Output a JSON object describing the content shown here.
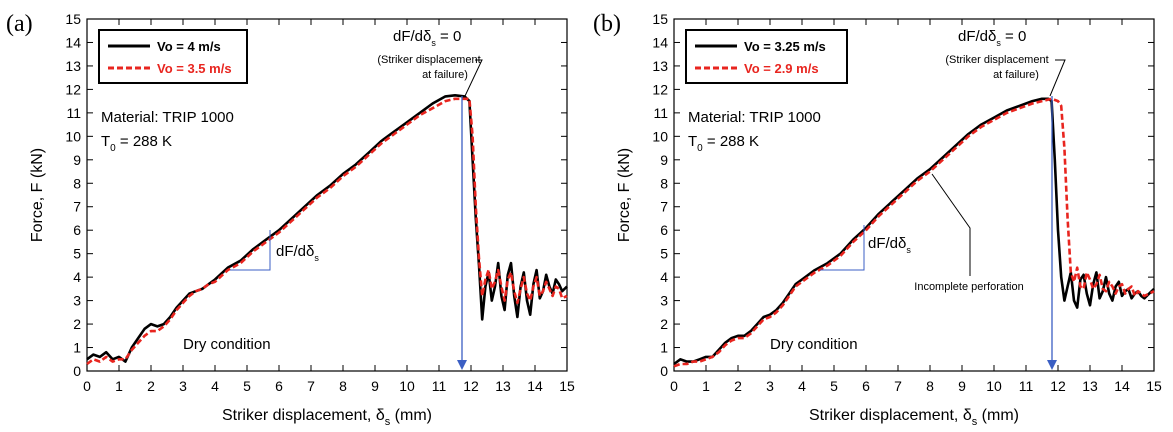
{
  "chart_data": [
    {
      "panel_label": "(a)",
      "type": "line",
      "xlabel": "Striker displacement, δ",
      "xlabel_sub": "s",
      "xlabel_unit": " (mm)",
      "ylabel": "Force, F (kN)",
      "xlim": [
        0,
        15
      ],
      "ylim": [
        0,
        15
      ],
      "xticks": [
        "0",
        "1",
        "2",
        "3",
        "4",
        "5",
        "6",
        "7",
        "8",
        "9",
        "10",
        "11",
        "12",
        "13",
        "14",
        "15"
      ],
      "yticks": [
        "0",
        "1",
        "2",
        "3",
        "4",
        "5",
        "6",
        "7",
        "8",
        "9",
        "10",
        "11",
        "12",
        "13",
        "14",
        "15"
      ],
      "grid": false,
      "legend_position": "top-left",
      "series": [
        {
          "name": "Vo = 4 m/s",
          "color": "#000000",
          "dash": "solid",
          "x": [
            0,
            0.2,
            0.4,
            0.6,
            0.8,
            1.0,
            1.2,
            1.4,
            1.6,
            1.8,
            2.0,
            2.2,
            2.4,
            2.6,
            2.8,
            3.0,
            3.2,
            3.4,
            3.6,
            3.8,
            4.0,
            4.4,
            4.8,
            5.2,
            5.6,
            6.0,
            6.4,
            6.8,
            7.2,
            7.6,
            8.0,
            8.4,
            8.8,
            9.2,
            9.6,
            10.0,
            10.4,
            10.8,
            11.2,
            11.5,
            11.8,
            11.95,
            12.05,
            12.15,
            12.25,
            12.35,
            12.45,
            12.55,
            12.65,
            12.75,
            12.85,
            12.95,
            13.05,
            13.15,
            13.25,
            13.35,
            13.45,
            13.55,
            13.65,
            13.75,
            13.85,
            13.95,
            14.05,
            14.15,
            14.25,
            14.35,
            14.45,
            14.55,
            14.65,
            14.75,
            14.85,
            15.0
          ],
          "y": [
            0.5,
            0.7,
            0.6,
            0.8,
            0.5,
            0.6,
            0.4,
            1.0,
            1.4,
            1.8,
            2.0,
            1.9,
            2.0,
            2.3,
            2.7,
            3.0,
            3.3,
            3.4,
            3.5,
            3.7,
            3.9,
            4.4,
            4.7,
            5.2,
            5.6,
            6.0,
            6.5,
            7.0,
            7.5,
            7.9,
            8.4,
            8.8,
            9.3,
            9.8,
            10.2,
            10.6,
            11.0,
            11.4,
            11.7,
            11.75,
            11.7,
            11.5,
            9.0,
            6.5,
            4.5,
            2.2,
            3.6,
            4.2,
            3.0,
            3.6,
            4.6,
            3.2,
            2.6,
            4.1,
            4.6,
            3.2,
            2.3,
            3.6,
            4.2,
            3.0,
            2.4,
            3.7,
            4.3,
            3.1,
            3.4,
            4.1,
            3.6,
            3.3,
            3.9,
            3.7,
            3.4,
            3.6
          ]
        },
        {
          "name": "Vo = 3.5 m/s",
          "color": "#e8251f",
          "dash": "dashed",
          "x": [
            0,
            0.2,
            0.4,
            0.6,
            0.8,
            1.0,
            1.2,
            1.4,
            1.6,
            1.8,
            2.0,
            2.2,
            2.4,
            2.6,
            2.8,
            3.0,
            3.2,
            3.4,
            3.6,
            3.8,
            4.0,
            4.4,
            4.8,
            5.2,
            5.6,
            6.0,
            6.4,
            6.8,
            7.2,
            7.6,
            8.0,
            8.4,
            8.8,
            9.2,
            9.6,
            10.0,
            10.4,
            10.8,
            11.2,
            11.5,
            11.8,
            11.95,
            12.05,
            12.15,
            12.25,
            12.35,
            12.45,
            12.55,
            12.65,
            12.75,
            12.85,
            12.95,
            13.05,
            13.15,
            13.25,
            13.35,
            13.45,
            13.55,
            13.65,
            13.75,
            13.85,
            13.95,
            14.05,
            14.15,
            14.25,
            14.35,
            14.45,
            14.55,
            14.65,
            14.75,
            14.85,
            15.0
          ],
          "y": [
            0.3,
            0.5,
            0.4,
            0.6,
            0.4,
            0.5,
            0.5,
            0.9,
            1.2,
            1.5,
            1.7,
            1.7,
            1.9,
            2.2,
            2.6,
            2.9,
            3.2,
            3.4,
            3.5,
            3.7,
            3.8,
            4.3,
            4.6,
            5.1,
            5.5,
            5.9,
            6.4,
            6.9,
            7.4,
            7.8,
            8.3,
            8.7,
            9.2,
            9.7,
            10.1,
            10.5,
            10.9,
            11.2,
            11.5,
            11.6,
            11.6,
            11.6,
            10.0,
            7.0,
            4.8,
            3.2,
            3.9,
            4.3,
            3.5,
            3.8,
            4.3,
            3.6,
            3.0,
            3.9,
            4.2,
            3.4,
            2.9,
            3.5,
            4.0,
            3.3,
            3.0,
            3.6,
            4.0,
            3.2,
            3.4,
            3.8,
            3.5,
            3.2,
            3.6,
            3.5,
            3.1,
            3.2
          ]
        }
      ],
      "annotations": {
        "material": "Material: TRIP 1000",
        "temp_prefix": "T",
        "temp_sub": "0",
        "temp_suffix": " = 288 K",
        "condition": "Dry condition",
        "slope_main": "dF/dδ",
        "slope_sub": "s",
        "failure_main": "dF/dδ",
        "failure_sub": "s",
        "failure_eq": " = 0",
        "failure_note_1": "(Striker displacement",
        "failure_note_2": "at failure)"
      },
      "arrow_color": "#3b5fc4"
    },
    {
      "panel_label": "(b)",
      "type": "line",
      "xlabel": "Striker displacement, δ",
      "xlabel_sub": "s",
      "xlabel_unit": " (mm)",
      "ylabel": "Force, F (kN)",
      "xlim": [
        0,
        15
      ],
      "ylim": [
        0,
        15
      ],
      "xticks": [
        "0",
        "1",
        "2",
        "3",
        "4",
        "5",
        "6",
        "7",
        "8",
        "9",
        "10",
        "11",
        "12",
        "13",
        "14",
        "15"
      ],
      "yticks": [
        "0",
        "1",
        "2",
        "3",
        "4",
        "5",
        "6",
        "7",
        "8",
        "9",
        "10",
        "11",
        "12",
        "13",
        "14",
        "15"
      ],
      "grid": false,
      "legend_position": "top-left",
      "series": [
        {
          "name": "Vo = 3.25 m/s",
          "color": "#000000",
          "dash": "solid",
          "x": [
            0,
            0.2,
            0.4,
            0.6,
            0.8,
            1.0,
            1.2,
            1.4,
            1.6,
            1.8,
            2.0,
            2.2,
            2.4,
            2.6,
            2.8,
            3.0,
            3.2,
            3.4,
            3.6,
            3.8,
            4.0,
            4.4,
            4.8,
            5.2,
            5.6,
            6.0,
            6.4,
            6.8,
            7.2,
            7.6,
            8.0,
            8.4,
            8.8,
            9.2,
            9.6,
            10.0,
            10.4,
            10.8,
            11.2,
            11.5,
            11.7,
            11.8,
            11.9,
            12.0,
            12.1,
            12.2,
            12.3,
            12.4,
            12.5,
            12.6,
            12.7,
            12.8,
            12.9,
            13.0,
            13.1,
            13.2,
            13.3,
            13.4,
            13.5,
            13.6,
            13.7,
            13.8,
            13.9,
            14.0,
            14.1,
            14.2,
            14.3,
            14.4,
            14.5,
            14.6,
            14.7,
            14.85,
            15.0
          ],
          "y": [
            0.3,
            0.5,
            0.4,
            0.4,
            0.5,
            0.6,
            0.6,
            0.9,
            1.2,
            1.4,
            1.5,
            1.5,
            1.7,
            2.0,
            2.3,
            2.4,
            2.6,
            2.9,
            3.3,
            3.7,
            3.9,
            4.3,
            4.6,
            5.0,
            5.6,
            6.1,
            6.7,
            7.2,
            7.7,
            8.2,
            8.6,
            9.1,
            9.6,
            10.1,
            10.5,
            10.8,
            11.1,
            11.3,
            11.5,
            11.6,
            11.6,
            11.5,
            9.0,
            6.0,
            4.0,
            3.0,
            3.6,
            4.2,
            3.0,
            2.7,
            3.9,
            4.1,
            3.3,
            2.8,
            3.7,
            4.2,
            3.1,
            3.4,
            4.0,
            3.3,
            3.0,
            3.6,
            3.8,
            3.2,
            3.4,
            3.5,
            3.1,
            3.3,
            3.4,
            3.2,
            3.1,
            3.3,
            3.5
          ]
        },
        {
          "name": "Vo = 2.9 m/s",
          "color": "#e8251f",
          "dash": "dashed",
          "x": [
            0,
            0.2,
            0.4,
            0.6,
            0.8,
            1.0,
            1.2,
            1.4,
            1.6,
            1.8,
            2.0,
            2.2,
            2.4,
            2.6,
            2.8,
            3.0,
            3.2,
            3.4,
            3.6,
            3.8,
            4.0,
            4.4,
            4.8,
            5.2,
            5.6,
            6.0,
            6.4,
            6.8,
            7.2,
            7.6,
            8.0,
            8.4,
            8.8,
            9.2,
            9.6,
            10.0,
            10.4,
            10.8,
            11.2,
            11.5,
            11.8,
            12.0,
            12.1,
            12.2,
            12.3,
            12.4,
            12.5,
            12.6,
            12.7,
            12.8,
            12.9,
            13.0,
            13.1,
            13.2,
            13.3,
            13.4,
            13.5,
            13.6,
            13.7,
            13.8,
            13.9,
            14.0,
            14.1,
            14.2,
            14.3,
            14.4,
            14.5,
            14.6,
            14.7,
            14.85,
            15.0
          ],
          "y": [
            0.2,
            0.3,
            0.3,
            0.4,
            0.4,
            0.5,
            0.6,
            0.8,
            1.1,
            1.3,
            1.4,
            1.4,
            1.6,
            1.9,
            2.2,
            2.3,
            2.5,
            2.8,
            3.2,
            3.6,
            3.8,
            4.2,
            4.5,
            4.9,
            5.5,
            6.0,
            6.6,
            7.1,
            7.6,
            8.1,
            8.5,
            9.0,
            9.5,
            10.0,
            10.4,
            10.7,
            11.0,
            11.2,
            11.4,
            11.5,
            11.6,
            11.5,
            11.3,
            9.5,
            6.5,
            4.2,
            3.8,
            4.4,
            3.6,
            3.5,
            4.2,
            3.9,
            3.5,
            3.7,
            4.1,
            3.5,
            3.4,
            3.8,
            3.6,
            3.3,
            3.6,
            3.7,
            3.3,
            3.5,
            3.6,
            3.2,
            3.4,
            3.3,
            3.2,
            3.3,
            3.4
          ]
        }
      ],
      "annotations": {
        "material": "Material: TRIP 1000",
        "temp_prefix": "T",
        "temp_sub": "0",
        "temp_suffix": " = 288 K",
        "condition": "Dry condition",
        "slope_main": "dF/dδ",
        "slope_sub": "s",
        "failure_main": "dF/dδ",
        "failure_sub": "s",
        "failure_eq": " = 0",
        "failure_note_1": "(Striker displacement",
        "failure_note_2": "at failure)",
        "incomplete": "Incomplete perforation"
      },
      "arrow_color": "#3b5fc4"
    }
  ]
}
